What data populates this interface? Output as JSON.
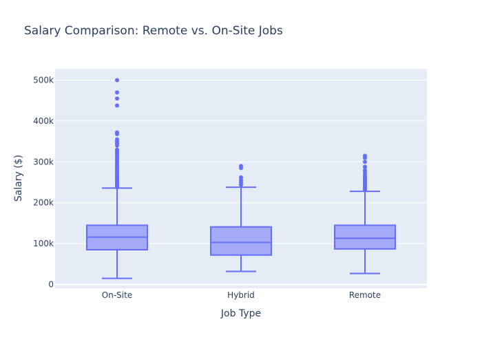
{
  "chart_data": {
    "type": "box",
    "title": "Salary Comparison: Remote vs. On-Site Jobs",
    "xlabel": "Job Type",
    "ylabel": "Salary ($)",
    "ylim": [
      -10000,
      525000
    ],
    "yticks": [
      0,
      100000,
      200000,
      300000,
      400000,
      500000
    ],
    "ytick_labels": [
      "0",
      "100k",
      "200k",
      "300k",
      "400k",
      "500k"
    ],
    "grid": true,
    "colors": {
      "plot_bg": "#e5ecf6",
      "grid": "#ffffff",
      "box_line": "#636efa",
      "box_fill": "#a5aaf8",
      "text": "#2a3f5f"
    },
    "categories": [
      "On-Site",
      "Hybrid",
      "Remote"
    ],
    "boxes": [
      {
        "category": "On-Site",
        "min": 15000,
        "q1": 85000,
        "median": 116000,
        "q3": 145000,
        "max": 236000,
        "outliers": [
          238000,
          240000,
          243000,
          246000,
          249000,
          252000,
          256000,
          260000,
          264000,
          268000,
          272000,
          276000,
          280000,
          284000,
          290000,
          295000,
          300000,
          305000,
          310000,
          315000,
          320000,
          325000,
          330000,
          340000,
          345000,
          350000,
          355000,
          368000,
          372000,
          438000,
          455000,
          470000,
          500000
        ]
      },
      {
        "category": "Hybrid",
        "min": 32000,
        "q1": 72000,
        "median": 103000,
        "q3": 141000,
        "max": 238000,
        "outliers": [
          244000,
          250000,
          255000,
          262000,
          285000,
          290000
        ]
      },
      {
        "category": "Remote",
        "min": 27000,
        "q1": 87000,
        "median": 113000,
        "q3": 145000,
        "max": 228000,
        "outliers": [
          232000,
          235000,
          238000,
          241000,
          244000,
          247000,
          250000,
          253000,
          256000,
          259000,
          262000,
          265000,
          268000,
          275000,
          280000,
          288000,
          300000,
          310000,
          315000
        ]
      }
    ]
  }
}
